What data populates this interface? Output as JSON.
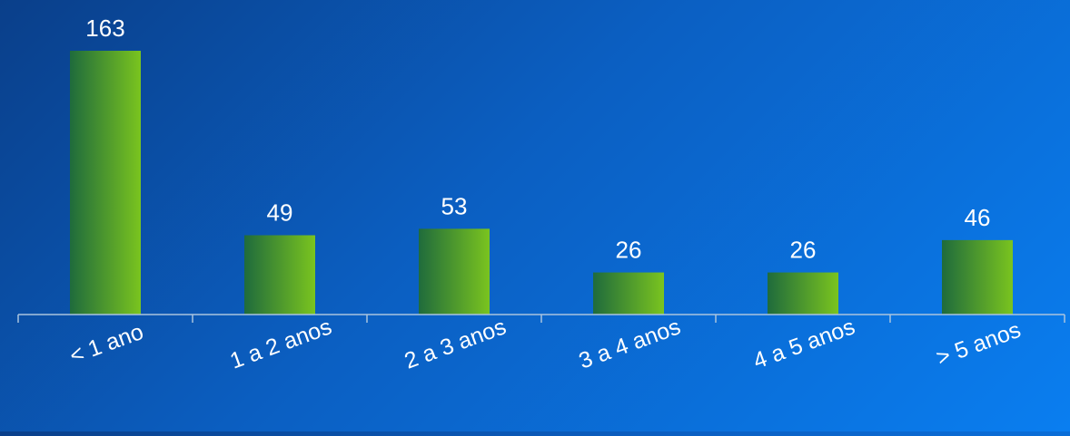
{
  "chart_data": {
    "type": "bar",
    "categories": [
      "< 1 ano",
      "1 a 2 anos",
      "2 a 3 anos",
      "3 a 4 anos",
      "4 a 5 anos",
      "> 5 anos"
    ],
    "values": [
      163,
      49,
      53,
      26,
      26,
      46
    ],
    "title": "",
    "xlabel": "",
    "ylabel": "",
    "ylim": [
      0,
      163
    ],
    "grid": false,
    "legend": "none",
    "colors": {
      "bar_dark": "#1f6b3c",
      "bar_light": "#7ac41f",
      "axis": "#a9c4de",
      "text": "#ffffff"
    }
  }
}
